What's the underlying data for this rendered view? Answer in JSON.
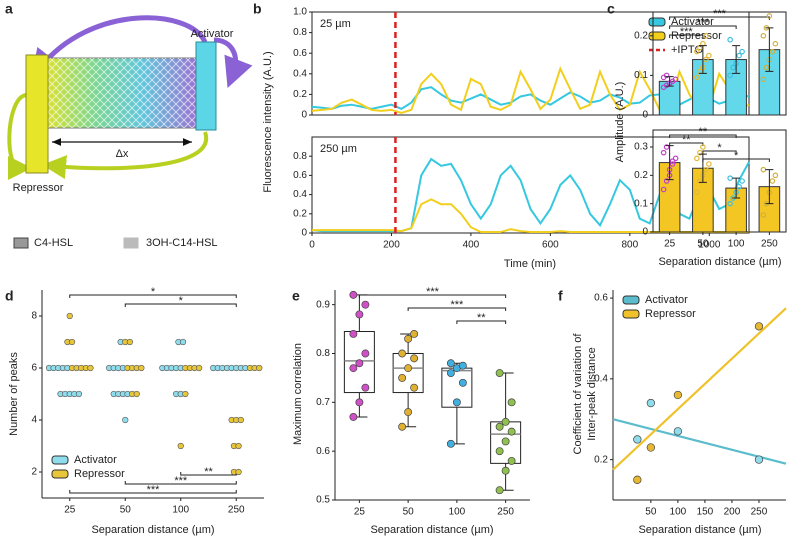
{
  "diagram": {
    "panel": "a",
    "activator": "Activator",
    "repressor": "Repressor",
    "distance": "Δx",
    "legend": [
      "C4-HSL",
      "3OH-C14-HSL"
    ]
  },
  "chart_data": [
    {
      "type": "line",
      "panel": "b",
      "annotation": "25 µm",
      "ylabel": "Fluorescence intensity (A.U.)",
      "x": [
        0,
        25,
        50,
        75,
        100,
        125,
        150,
        175,
        200,
        225,
        250,
        275,
        300,
        325,
        350,
        375,
        400,
        425,
        450,
        475,
        500,
        525,
        550,
        575,
        600,
        625,
        650,
        675,
        700,
        725,
        750,
        775,
        800,
        825,
        850,
        875,
        900,
        925,
        950,
        975,
        1000,
        1025,
        1050,
        1075,
        1100
      ],
      "xlim": [
        0,
        1100
      ],
      "ylim": [
        0,
        1
      ],
      "yticks": [
        0,
        0.2,
        0.4,
        0.6,
        0.8,
        {
          "value": 1,
          "label": "1.0"
        }
      ],
      "legend": "upper right",
      "series": [
        {
          "name": "Activator",
          "color": "#35c8e0",
          "values": [
            0.08,
            0.07,
            0.06,
            0.09,
            0.1,
            0.08,
            0.06,
            0.08,
            0.1,
            0.06,
            0.12,
            0.25,
            0.27,
            0.2,
            0.14,
            0.12,
            0.16,
            0.2,
            0.15,
            0.1,
            0.12,
            0.18,
            0.2,
            0.14,
            0.1,
            0.16,
            0.22,
            0.18,
            0.12,
            0.14,
            0.2,
            0.17,
            0.11,
            0.12,
            0.19,
            0.2,
            0.14,
            0.1,
            0.15,
            0.2,
            0.16,
            0.11,
            0.14,
            0.2,
            0.18
          ]
        },
        {
          "name": "Repressor",
          "color": "#f2cf1d",
          "values": [
            0.04,
            0.05,
            0.06,
            0.12,
            0.15,
            0.1,
            0.05,
            0.04,
            0.05,
            0.02,
            0.05,
            0.3,
            0.4,
            0.3,
            0.1,
            0.05,
            0.35,
            0.3,
            0.08,
            0.05,
            0.1,
            0.42,
            0.25,
            0.06,
            0.15,
            0.45,
            0.25,
            0.06,
            0.1,
            0.42,
            0.2,
            0.05,
            0.1,
            0.42,
            0.25,
            0.05,
            0.1,
            0.42,
            0.2,
            0.05,
            0.08,
            0.4,
            0.25,
            0.06,
            0.1
          ]
        }
      ],
      "vline": {
        "name": "+IPTG",
        "x": 210,
        "color": "#dd2020"
      }
    },
    {
      "type": "line",
      "annotation": "250 µm",
      "xlabel": "Time (min)",
      "x": [
        0,
        25,
        50,
        75,
        100,
        125,
        150,
        175,
        200,
        225,
        250,
        275,
        300,
        325,
        350,
        375,
        400,
        425,
        450,
        475,
        500,
        525,
        550,
        575,
        600,
        625,
        650,
        675,
        700,
        725,
        750,
        775,
        800,
        825,
        850,
        875,
        900,
        925,
        950,
        975,
        1000,
        1025,
        1050,
        1075,
        1100
      ],
      "xlim": [
        0,
        1100
      ],
      "xticks": [
        0,
        200,
        400,
        600,
        800,
        1000
      ],
      "ylim": [
        0,
        1
      ],
      "yticks": [
        0,
        0.2,
        0.4,
        0.6,
        0.8
      ],
      "series": [
        {
          "color": "#35c8e0",
          "values": [
            0.03,
            0.02,
            0.02,
            0.02,
            0.02,
            0.02,
            0.02,
            0.02,
            0.02,
            0.02,
            0.05,
            0.6,
            0.77,
            0.7,
            0.72,
            0.55,
            0.3,
            0.15,
            0.3,
            0.6,
            0.7,
            0.55,
            0.25,
            0.1,
            0.25,
            0.5,
            0.6,
            0.45,
            0.2,
            0.08,
            0.3,
            0.55,
            0.45,
            0.15,
            0.1,
            0.4,
            0.45,
            0.2,
            0.15,
            0.4,
            0.45,
            0.25,
            0.3,
            0.55,
            0.74
          ]
        },
        {
          "color": "#f2cf1d",
          "values": [
            0.03,
            0.03,
            0.03,
            0.03,
            0.03,
            0.03,
            0.03,
            0.03,
            0.03,
            0.02,
            0.05,
            0.3,
            0.35,
            0.3,
            0.3,
            0.2,
            0.06,
            0.01,
            0.01,
            0.01,
            0.04,
            0.02,
            0.01,
            0.01,
            0.01,
            0.02,
            0.01,
            0.01,
            0.01,
            0.01,
            0.01,
            0.01,
            0.01,
            0.01,
            0.01,
            0.01,
            0.01,
            0.01,
            0.01,
            0.01,
            0.01,
            0.01,
            0.01,
            0.01,
            0.01
          ]
        }
      ],
      "vline": {
        "x": 210,
        "color": "#dd2020"
      }
    },
    {
      "type": "bar",
      "panel": "c",
      "ylabel": "Amplitude (A.U.)",
      "color": "#62d8ea",
      "values": [
        0.085,
        0.14,
        0.14,
        0.165
      ],
      "errors": [
        0.012,
        0.035,
        0.035,
        0.055
      ],
      "points": [
        [
          0.07,
          0.075,
          0.08,
          0.085,
          0.09,
          0.095,
          0.1,
          0.08
        ],
        [
          0.095,
          0.11,
          0.12,
          0.14,
          0.15,
          0.16,
          0.17,
          0.18,
          0.2
        ],
        [
          0.1,
          0.12,
          0.13,
          0.15,
          0.16,
          0.19,
          0.12
        ],
        [
          0.09,
          0.12,
          0.14,
          0.16,
          0.18,
          0.2,
          0.22,
          0.25
        ]
      ],
      "point_colors": [
        "#c040c8",
        "#e0b83a",
        "#3cc0e0",
        "#d0b040"
      ],
      "ylim": [
        0,
        0.26
      ],
      "yticks": [
        0,
        0.1,
        0.2
      ],
      "significance": [
        {
          "label": "***",
          "pair": [
            "25",
            "250"
          ]
        },
        {
          "label": "***",
          "pair": [
            "25",
            "100"
          ]
        },
        {
          "label": "***",
          "pair": [
            "25",
            "50"
          ]
        }
      ]
    },
    {
      "type": "bar",
      "xlabel": "Separation distance (µm)",
      "color": "#f3c623",
      "categories": [
        "25",
        "50",
        "100",
        "250"
      ],
      "values": [
        0.245,
        0.225,
        0.155,
        0.16
      ],
      "errors": [
        0.06,
        0.05,
        0.035,
        0.06
      ],
      "points": [
        [
          0.15,
          0.18,
          0.2,
          0.24,
          0.26,
          0.28,
          0.3,
          0.22,
          0.25
        ],
        [
          0.14,
          0.18,
          0.2,
          0.22,
          0.24,
          0.26,
          0.28,
          0.3
        ],
        [
          0.1,
          0.12,
          0.14,
          0.16,
          0.18,
          0.19
        ],
        [
          0.06,
          0.1,
          0.14,
          0.18,
          0.2,
          0.22
        ]
      ],
      "point_colors": [
        "#c040c8",
        "#e0b83a",
        "#3cc0e0",
        "#d0b040"
      ],
      "ylim": [
        0,
        0.36
      ],
      "yticks": [
        0,
        0.1,
        0.2,
        0.3
      ],
      "significance": [
        {
          "label": "**",
          "pair": [
            "25",
            "100"
          ]
        },
        {
          "label": "**",
          "pair": [
            "25",
            "50"
          ]
        },
        {
          "label": "*",
          "pair": [
            "50",
            "100"
          ]
        },
        {
          "label": "*",
          "pair": [
            "50",
            "250"
          ]
        }
      ]
    },
    {
      "type": "dot",
      "panel": "d",
      "ylabel": "Number of peaks",
      "xlabel": "Separation distance (µm)",
      "categories": [
        "25",
        "50",
        "100",
        "250"
      ],
      "ylim": [
        1,
        9
      ],
      "yticks": [
        2,
        4,
        6,
        8
      ],
      "legend": "lower left",
      "series": [
        {
          "name": "Activator",
          "color": "#8fdcec",
          "values": [
            [
              6,
              6,
              6,
              6,
              6,
              5,
              5,
              5,
              5,
              5
            ],
            [
              6,
              6,
              6,
              6,
              5,
              5,
              5,
              5,
              4,
              7
            ],
            [
              6,
              6,
              6,
              6,
              7,
              7,
              5,
              5,
              6
            ],
            [
              6,
              6,
              6,
              6,
              6,
              6,
              6,
              6
            ]
          ]
        },
        {
          "name": "Repressor",
          "color": "#e8c63a",
          "values": [
            [
              6,
              6,
              6,
              6,
              6,
              7,
              7,
              8
            ],
            [
              6,
              6,
              6,
              6,
              7,
              7,
              5,
              5
            ],
            [
              6,
              6,
              6,
              6,
              3,
              5
            ],
            [
              6,
              6,
              6,
              4,
              4,
              4,
              3,
              3,
              2,
              2
            ]
          ]
        }
      ],
      "significance": [
        {
          "label": "*",
          "pair": [
            "25",
            "250"
          ],
          "color": "#35c8e0",
          "position": "top"
        },
        {
          "label": "*",
          "pair": [
            "50",
            "250"
          ],
          "color": "#35c8e0",
          "position": "top"
        },
        {
          "label": "***",
          "pair": [
            "25",
            "250"
          ],
          "color": "#e8c63a",
          "position": "bottom"
        },
        {
          "label": "***",
          "pair": [
            "50",
            "250"
          ],
          "color": "#e8c63a",
          "position": "bottom"
        },
        {
          "label": "**",
          "pair": [
            "100",
            "250"
          ],
          "color": "#e8c63a",
          "position": "bottom"
        }
      ]
    },
    {
      "type": "box",
      "panel": "e",
      "ylabel": "Maximum correlation",
      "xlabel": "Separation distance (µm)",
      "categories": [
        "25",
        "50",
        "100",
        "250"
      ],
      "colors": [
        "#d050c8",
        "#e0b030",
        "#40b0e0",
        "#90c050"
      ],
      "whisker_low": [
        0.67,
        0.65,
        0.615,
        0.52
      ],
      "q1": [
        0.72,
        0.72,
        0.69,
        0.575
      ],
      "median": [
        0.785,
        0.77,
        0.765,
        0.635
      ],
      "q3": [
        0.845,
        0.8,
        0.77,
        0.66
      ],
      "whisker_high": [
        0.92,
        0.84,
        0.78,
        0.76
      ],
      "points": [
        [
          0.67,
          0.7,
          0.73,
          0.77,
          0.78,
          0.8,
          0.84,
          0.88,
          0.9,
          0.92
        ],
        [
          0.65,
          0.68,
          0.73,
          0.75,
          0.77,
          0.79,
          0.8,
          0.83,
          0.84
        ],
        [
          0.615,
          0.7,
          0.74,
          0.76,
          0.77,
          0.775,
          0.78
        ],
        [
          0.52,
          0.56,
          0.58,
          0.6,
          0.62,
          0.64,
          0.65,
          0.66,
          0.7,
          0.76
        ]
      ],
      "ylim": [
        0.5,
        0.93
      ],
      "yticks": [
        0.5,
        0.6,
        0.7,
        0.8,
        0.9
      ],
      "significance": [
        {
          "label": "***",
          "pair": [
            "25",
            "250"
          ]
        },
        {
          "label": "***",
          "pair": [
            "50",
            "250"
          ]
        },
        {
          "label": "**",
          "pair": [
            "100",
            "250"
          ]
        }
      ]
    },
    {
      "type": "scatter",
      "panel": "f",
      "ylabel": [
        "Coefficient of variation of",
        "Inter-peak distance"
      ],
      "xlabel": "Separation distance (µm)",
      "x": [
        25,
        50,
        100,
        250
      ],
      "xlim": [
        -20,
        300
      ],
      "xticks": [
        50,
        100,
        150,
        200,
        250
      ],
      "ylim": [
        0.1,
        0.62
      ],
      "yticks": [
        0.2,
        0.4,
        0.6
      ],
      "legend": "upper left",
      "series": [
        {
          "name": "Activator",
          "color": "#5bbccb",
          "marker_color": "#8fdcec",
          "values": [
            0.25,
            0.34,
            0.27,
            0.2
          ],
          "fit": {
            "x": [
              -20,
              300
            ],
            "y": [
              0.3,
              0.19
            ]
          }
        },
        {
          "name": "Repressor",
          "color": "#efc22c",
          "marker_color": "#e8b830",
          "values": [
            0.15,
            0.23,
            0.36,
            0.53
          ],
          "fit": {
            "x": [
              -20,
              300
            ],
            "y": [
              0.175,
              0.575
            ]
          }
        }
      ]
    }
  ]
}
